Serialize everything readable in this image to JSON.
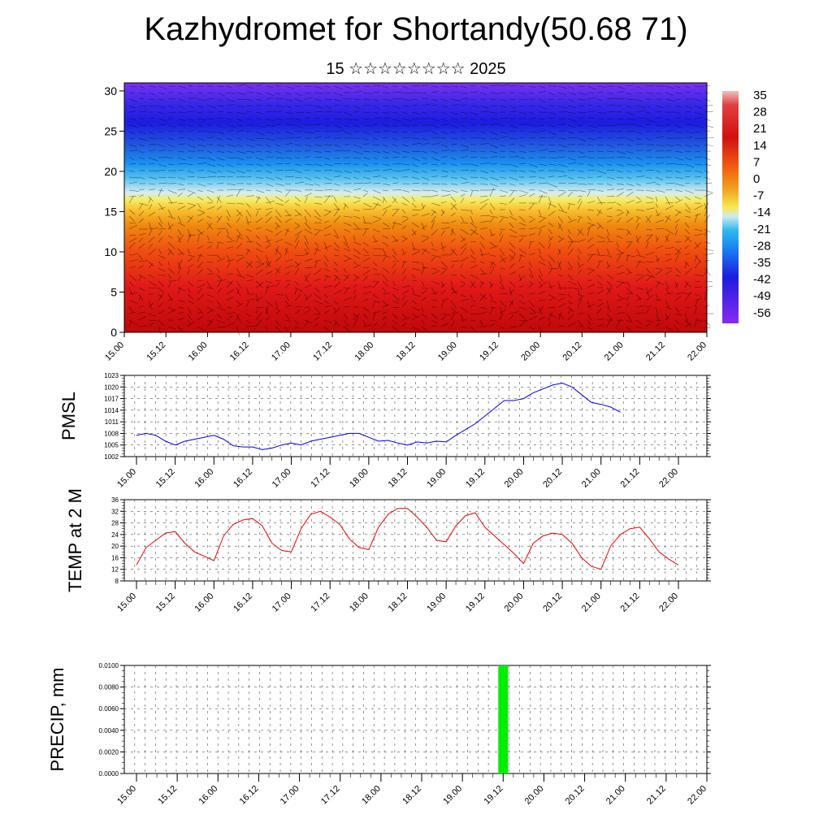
{
  "title": "Kazhydromet for Shortandy(50.68 71)",
  "subtitle": "15 ☆☆☆☆☆☆☆☆ 2025",
  "time_ticks": [
    "15.00",
    "15.12",
    "16.00",
    "16.12",
    "17.00",
    "17.12",
    "18.00",
    "18.12",
    "19.00",
    "19.12",
    "20.00",
    "20.12",
    "21.00",
    "21.12",
    "22.00"
  ],
  "chart_data": [
    {
      "type": "heatmap",
      "title": "",
      "ylim": [
        0,
        31
      ],
      "yticks": [
        "0",
        "5",
        "10",
        "15",
        "20",
        "25",
        "30"
      ],
      "x_categories": [
        "15.00",
        "15.12",
        "16.00",
        "16.12",
        "17.00",
        "17.12",
        "18.00",
        "18.12",
        "19.00",
        "19.12",
        "20.00",
        "20.12",
        "21.00",
        "21.12",
        "22.00"
      ],
      "colorbar_labels": [
        "35",
        "28",
        "21",
        "14",
        "7",
        "0",
        "-7",
        "-14",
        "-21",
        "-28",
        "-35",
        "-42",
        "-49",
        "-56"
      ],
      "colorbar_range": [
        -60,
        38
      ],
      "colors": {
        "hot": "#d01010",
        "warm": "#f08a10",
        "mid": "#f8e850",
        "cool": "#30b8f0",
        "cold": "#2020e0",
        "top": "#8a2af0"
      }
    },
    {
      "type": "line",
      "ylabel": "PMSL",
      "ylim": [
        1002,
        1023
      ],
      "yticks": [
        "1002",
        "1005",
        "1008",
        "1011",
        "1014",
        "1017",
        "1020",
        "1023"
      ],
      "x_start": "15.00",
      "step_hours": 3,
      "series": [
        {
          "color": "#0000ee",
          "values": [
            1007.5,
            1008,
            1007.5,
            1006,
            1005,
            1006,
            1006.5,
            1007,
            1007.5,
            1006.5,
            1004.8,
            1004.5,
            1004.5,
            1003.8,
            1004.2,
            1005,
            1005.5,
            1005,
            1006,
            1006.5,
            1007,
            1007.5,
            1008,
            1008,
            1007,
            1006,
            1006.2,
            1005.5,
            1005,
            1005.8,
            1005.5,
            1006,
            1005.8,
            1007.5,
            1009,
            1010.5,
            1012.5,
            1014.5,
            1016.5,
            1016.5,
            1017,
            1018.5,
            1019.5,
            1020.5,
            1021,
            1020,
            1018,
            1016,
            1015.5,
            1014.8,
            1013.5
          ]
        }
      ]
    },
    {
      "type": "line",
      "ylabel": "TEMP at 2 M",
      "ylim": [
        8,
        36
      ],
      "yticks": [
        "8",
        "12",
        "16",
        "20",
        "24",
        "28",
        "32",
        "36"
      ],
      "x_start": "15.00",
      "step_hours": 3,
      "series": [
        {
          "color": "#ee0000",
          "values": [
            13.5,
            19.5,
            22,
            24.5,
            25,
            21,
            18,
            16.5,
            15,
            23.5,
            27.5,
            29,
            29.5,
            27,
            21,
            18.5,
            18,
            26,
            31,
            32,
            30,
            27.5,
            22.5,
            19.5,
            18.8,
            26.5,
            31,
            33,
            33,
            30,
            26.5,
            22,
            21.5,
            27,
            30.5,
            31.5,
            26.5,
            23.5,
            20.5,
            17.5,
            14,
            21,
            23.5,
            24.5,
            24,
            21,
            16,
            13,
            12,
            20,
            24,
            26,
            26.5,
            22.5,
            18,
            15.5,
            13.5
          ]
        }
      ]
    },
    {
      "type": "bar",
      "ylabel": "PRECIP, mm",
      "ylim": [
        0,
        0.01
      ],
      "yticks": [
        "0.0000",
        "0.0020",
        "0.0040",
        "0.0060",
        "0.0080",
        "0.0100"
      ],
      "bars": [
        {
          "x": "19.12",
          "value": 0.01,
          "color": "#00ee00"
        }
      ]
    }
  ]
}
